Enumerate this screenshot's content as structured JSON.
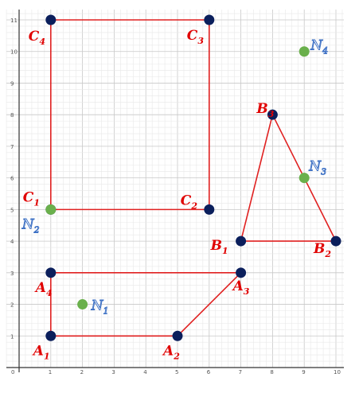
{
  "graph": {
    "xlim": [
      0,
      10
    ],
    "ylim": [
      0,
      11
    ],
    "x_ticks": [
      0,
      1,
      2,
      3,
      4,
      5,
      6,
      7,
      8,
      9,
      10
    ],
    "y_ticks": [
      1,
      2,
      3,
      4,
      5,
      6,
      7,
      8,
      9,
      10,
      11
    ],
    "minor_divisions": 5,
    "colors": {
      "edge": "#e02020",
      "vertex": "#0b1f5c",
      "extra_point": "#6ab04c",
      "vertex_label": "#e00000",
      "point_label_outline": "#3b6fc4",
      "grid_major": "#c8c8c8",
      "grid_minor": "#e8e8e8",
      "axis": "#333333"
    }
  },
  "shapes": [
    {
      "name": "quadrilateral-A",
      "closed": true,
      "vertices": [
        {
          "letter": "A",
          "index": "1",
          "x": 1,
          "y": 1
        },
        {
          "letter": "A",
          "index": "2",
          "x": 5,
          "y": 1
        },
        {
          "letter": "A",
          "index": "3",
          "x": 7,
          "y": 3
        },
        {
          "letter": "A",
          "index": "4",
          "x": 1,
          "y": 3
        }
      ]
    },
    {
      "name": "triangle-B",
      "closed": true,
      "vertices": [
        {
          "letter": "B",
          "index": "1",
          "x": 7,
          "y": 4
        },
        {
          "letter": "B",
          "index": "2",
          "x": 10,
          "y": 4
        },
        {
          "letter": "B",
          "index": "3",
          "x": 8,
          "y": 8
        }
      ]
    },
    {
      "name": "rectangle-C",
      "closed": true,
      "vertices": [
        {
          "letter": "C",
          "index": "1",
          "x": 1,
          "y": 5
        },
        {
          "letter": "C",
          "index": "2",
          "x": 6,
          "y": 5
        },
        {
          "letter": "C",
          "index": "3",
          "x": 6,
          "y": 11
        },
        {
          "letter": "C",
          "index": "4",
          "x": 1,
          "y": 11
        }
      ]
    }
  ],
  "points": [
    {
      "letter": "N",
      "index": "1",
      "x": 2,
      "y": 2
    },
    {
      "letter": "N",
      "index": "2",
      "x": 1,
      "y": 5
    },
    {
      "letter": "N",
      "index": "3",
      "x": 9,
      "y": 6
    },
    {
      "letter": "N",
      "index": "4",
      "x": 9,
      "y": 10
    }
  ]
}
